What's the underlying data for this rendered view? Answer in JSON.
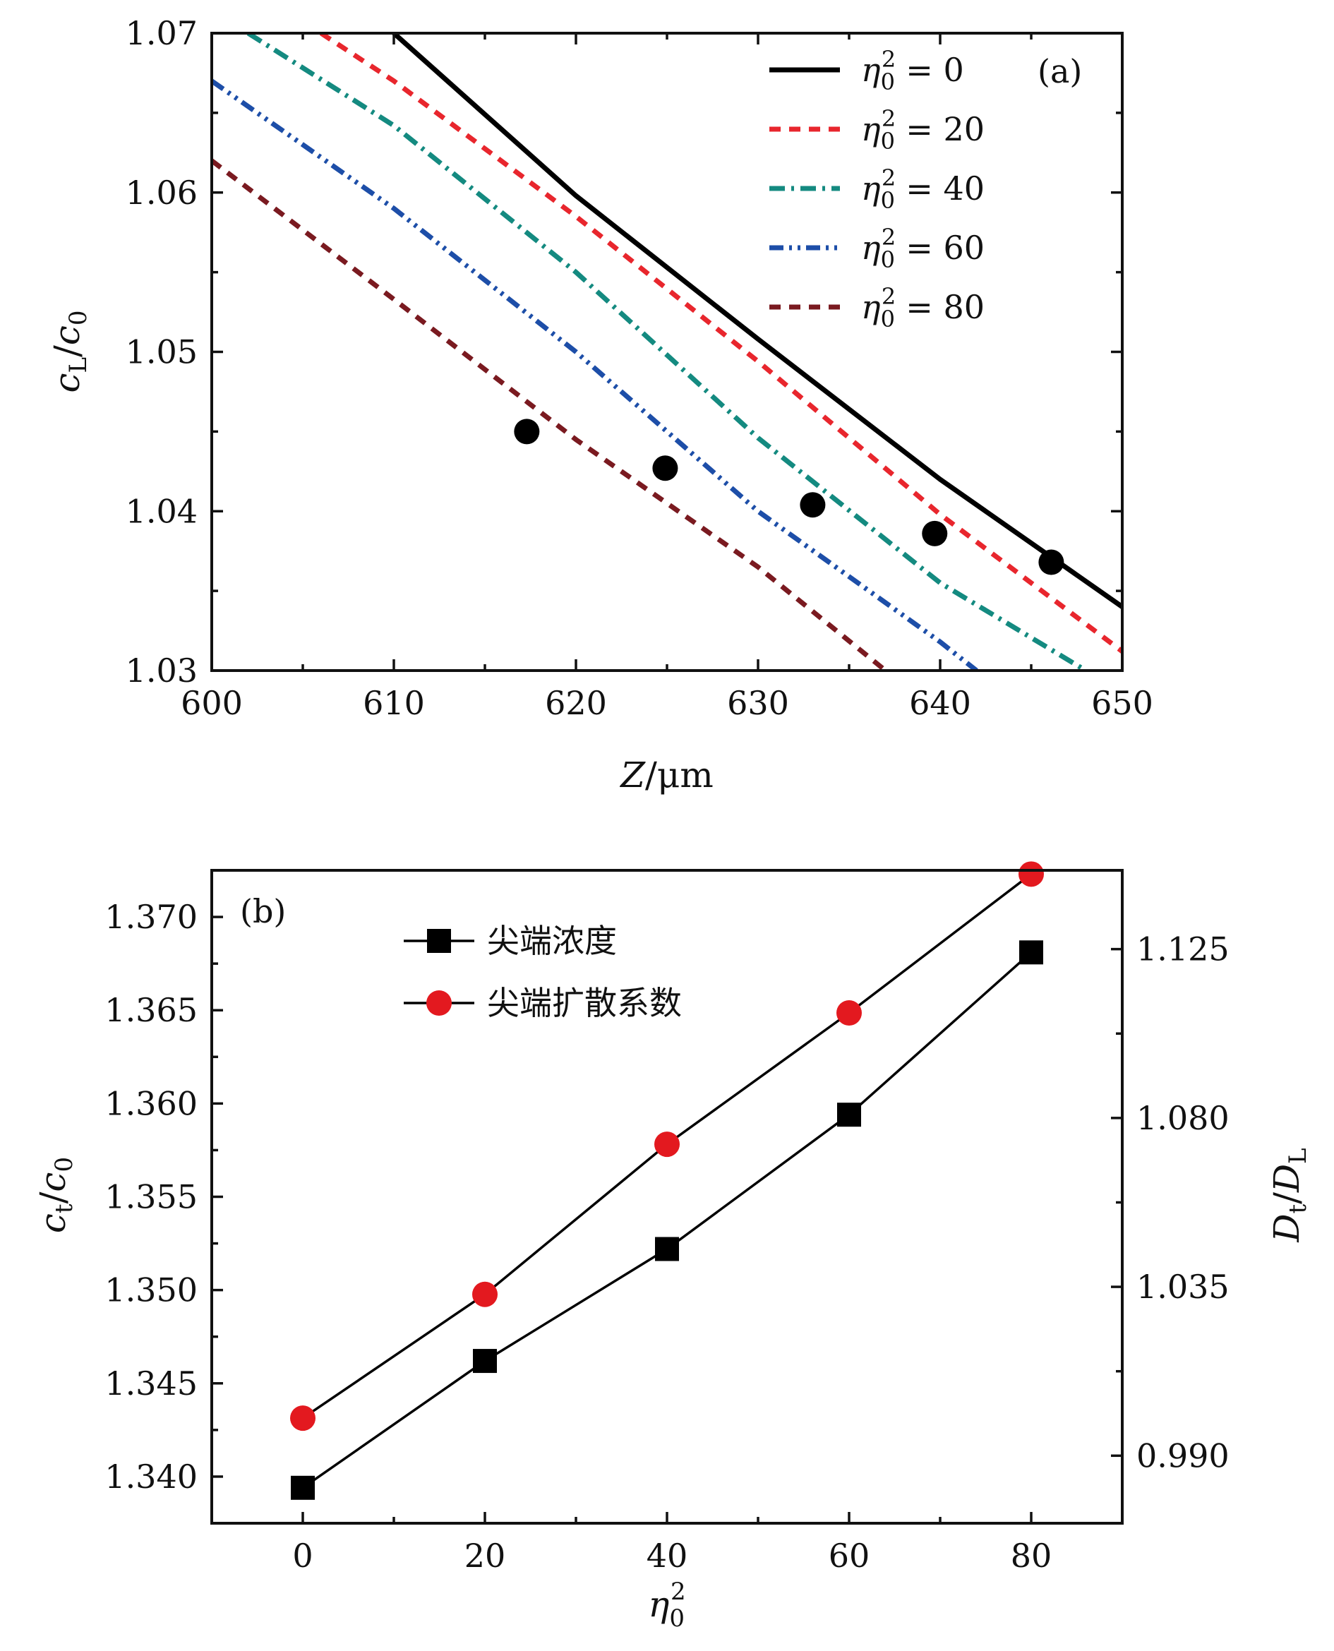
{
  "chart_data": [
    {
      "type": "line",
      "panel_label": "(a)",
      "xlabel": "Z/μm",
      "ylabel": "cL/c0",
      "xlim": [
        600,
        650
      ],
      "ylim": [
        1.03,
        1.07
      ],
      "x_ticks": [
        600,
        610,
        620,
        630,
        640,
        650
      ],
      "x_tick_labels": [
        "600",
        "610",
        "620",
        "630",
        "640",
        "650"
      ],
      "y_ticks": [
        1.03,
        1.04,
        1.05,
        1.06,
        1.07
      ],
      "y_tick_labels": [
        "1.03",
        "1.04",
        "1.05",
        "1.06",
        "1.07"
      ],
      "legend_position": "top-right",
      "series": [
        {
          "name": "η₀² = 0",
          "legend_text": "= 0",
          "color": "#000000",
          "dash": "solid",
          "x": [
            610,
            620,
            630,
            640,
            650
          ],
          "values": [
            1.07,
            1.0598,
            1.0508,
            1.042,
            1.034
          ]
        },
        {
          "name": "η₀² = 20",
          "legend_text": "= 20",
          "color": "#e8262d",
          "dash": "dash",
          "x": [
            606,
            610,
            620,
            630,
            640,
            650
          ],
          "values": [
            1.07,
            1.067,
            1.0585,
            1.0494,
            1.0398,
            1.0312
          ]
        },
        {
          "name": "η₀² = 40",
          "legend_text": "= 40",
          "color": "#148a80",
          "dash": "dashdot",
          "x": [
            602,
            610,
            620,
            630,
            640,
            648
          ],
          "values": [
            1.07,
            1.0642,
            1.055,
            1.0446,
            1.0355,
            1.03
          ]
        },
        {
          "name": "η₀² = 60",
          "legend_text": "= 60",
          "color": "#1d4ea8",
          "dash": "dashdotdot",
          "x": [
            600,
            610,
            620,
            630,
            640,
            642
          ],
          "values": [
            1.067,
            1.059,
            1.05,
            1.04,
            1.0318,
            1.03
          ]
        },
        {
          "name": "η₀² = 80",
          "legend_text": "= 80",
          "color": "#7a1a20",
          "dash": "dash",
          "x": [
            600,
            610,
            620,
            630,
            637
          ],
          "values": [
            1.062,
            1.0533,
            1.0445,
            1.0365,
            1.03
          ]
        }
      ],
      "markers": {
        "color": "#000000",
        "x": [
          617.3,
          624.9,
          633.0,
          639.7,
          646.1
        ],
        "values": [
          1.045,
          1.0427,
          1.0404,
          1.0386,
          1.0368
        ]
      }
    },
    {
      "type": "line",
      "panel_label": "(b)",
      "xlabel": "η₀²",
      "ylabel": "ct/c0",
      "y2label": "Dt/DL",
      "xlim": [
        -10,
        90
      ],
      "ylim": [
        1.3375,
        1.3725
      ],
      "y2lim": [
        0.972,
        1.146
      ],
      "x_ticks": [
        0,
        20,
        40,
        60,
        80
      ],
      "x_tick_labels": [
        "0",
        "20",
        "40",
        "60",
        "80"
      ],
      "y_ticks": [
        1.34,
        1.345,
        1.35,
        1.355,
        1.36,
        1.365,
        1.37
      ],
      "y_tick_labels": [
        "1.340",
        "1.345",
        "1.350",
        "1.355",
        "1.360",
        "1.365",
        "1.370"
      ],
      "y2_ticks": [
        0.99,
        1.035,
        1.08,
        1.125
      ],
      "y2_tick_labels": [
        "0.990",
        "1.035",
        "1.080",
        "1.125"
      ],
      "categories": [
        0,
        20,
        40,
        60,
        80
      ],
      "legend_position": "top-left",
      "series": [
        {
          "name": "尖端浓度",
          "marker": "square",
          "color": "#000000",
          "axis": "left",
          "values": [
            1.3394,
            1.3462,
            1.3522,
            1.3594,
            1.3681
          ]
        },
        {
          "name": "尖端扩散系数",
          "marker": "circle",
          "color": "#e3191f",
          "axis": "right",
          "values": [
            1.0,
            1.033,
            1.073,
            1.108,
            1.145
          ]
        }
      ]
    }
  ]
}
